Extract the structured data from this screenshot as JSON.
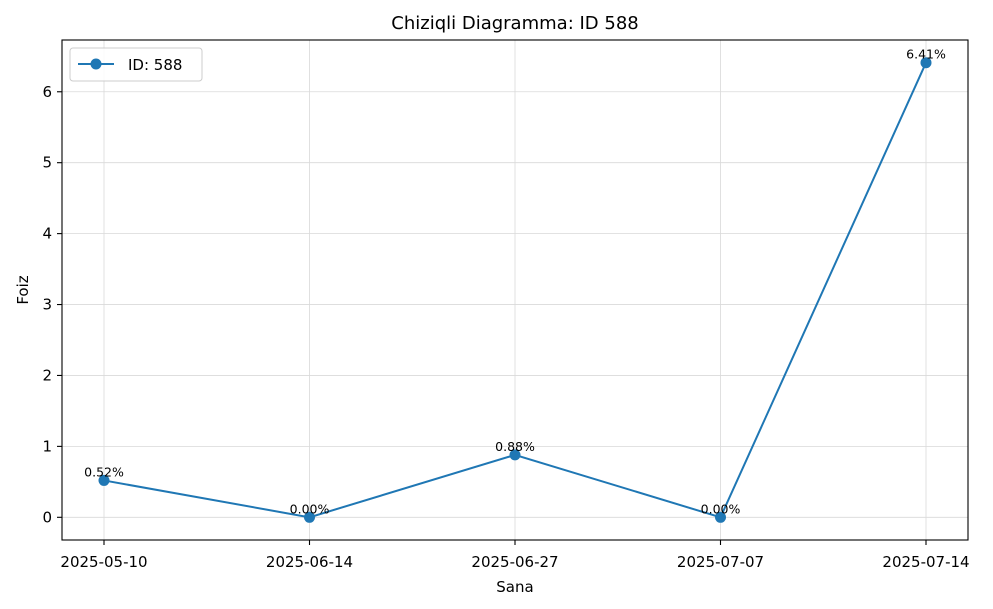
{
  "chart_data": {
    "type": "line",
    "title": "Chiziqli Diagramma: ID 588",
    "xlabel": "Sana",
    "ylabel": "Foiz",
    "categories": [
      "2025-05-10",
      "2025-06-14",
      "2025-06-27",
      "2025-07-07",
      "2025-07-14"
    ],
    "series": [
      {
        "name": "ID: 588",
        "values": [
          0.52,
          0.0,
          0.88,
          0.0,
          6.41
        ],
        "labels": [
          "0.52%",
          "0.00%",
          "0.88%",
          "0.00%",
          "6.41%"
        ],
        "color": "#1f77b4",
        "marker": "circle"
      }
    ],
    "ylim": [
      -0.32,
      6.73
    ],
    "yticks": [
      0,
      1,
      2,
      3,
      4,
      5,
      6
    ],
    "grid": true,
    "legend": "top-left"
  }
}
